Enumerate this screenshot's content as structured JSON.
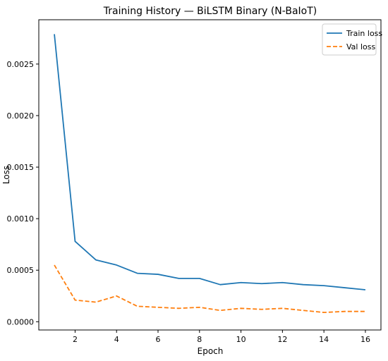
{
  "chart_data": {
    "type": "line",
    "title": "Training History — BiLSTM Binary (N-BaIoT)",
    "xlabel": "Epoch",
    "ylabel": "Loss",
    "xlim": [
      0.25,
      16.75
    ],
    "ylim": [
      -8e-05,
      0.00293
    ],
    "xticks": [
      2,
      4,
      6,
      8,
      10,
      12,
      14,
      16
    ],
    "yticks": [
      0.0,
      0.0005,
      0.001,
      0.0015,
      0.002,
      0.0025
    ],
    "ytick_labels": [
      "0.0000",
      "0.0005",
      "0.0010",
      "0.0015",
      "0.0020",
      "0.0025"
    ],
    "grid": false,
    "legend_position": "top-right",
    "x": [
      1,
      2,
      3,
      4,
      5,
      6,
      7,
      8,
      9,
      10,
      11,
      12,
      13,
      14,
      15,
      16
    ],
    "series": [
      {
        "name": "Train loss",
        "color": "#1f77b4",
        "style": "solid",
        "values": [
          0.00279,
          0.00078,
          0.0006,
          0.00055,
          0.00047,
          0.00046,
          0.00042,
          0.00042,
          0.00036,
          0.00038,
          0.00037,
          0.00038,
          0.00036,
          0.00035,
          0.00033,
          0.00031
        ]
      },
      {
        "name": "Val loss",
        "color": "#ff7f0e",
        "style": "dashed",
        "values": [
          0.00055,
          0.00021,
          0.00019,
          0.00025,
          0.00015,
          0.00014,
          0.00013,
          0.00014,
          0.00011,
          0.00013,
          0.00012,
          0.00013,
          0.00011,
          9e-05,
          0.0001,
          0.0001
        ]
      }
    ]
  }
}
